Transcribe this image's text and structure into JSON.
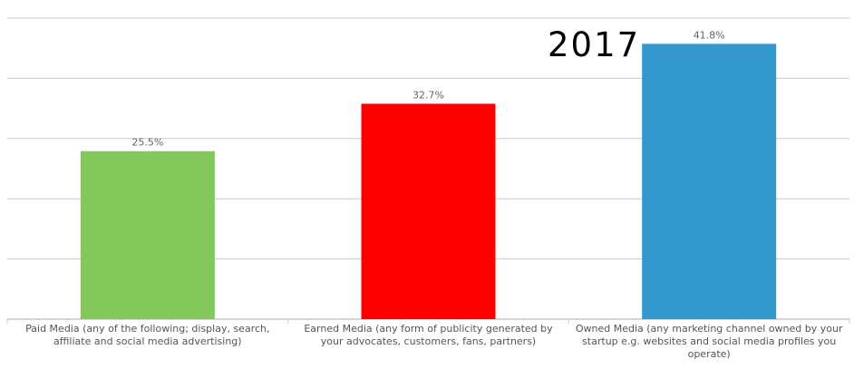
{
  "chart_data": {
    "type": "bar",
    "annotation": "2017",
    "categories": [
      "Paid Media (any of the following; display, search, affiliate and social media advertising)",
      "Earned Media (any form of publicity generated by your advocates, customers, fans, partners)",
      "Owned Media (any marketing channel owned by your startup e.g. websites and social media profiles you operate)"
    ],
    "values": [
      25.5,
      32.7,
      41.8
    ],
    "value_labels": [
      "25.5%",
      "32.7%",
      "41.8%"
    ],
    "colors": [
      "#84c75b",
      "#ff0000",
      "#3399cc"
    ],
    "ylim": [
      0,
      45.7
    ],
    "yticks": [
      0,
      9.14,
      18.28,
      27.42,
      36.56,
      45.7
    ],
    "grid": true
  }
}
